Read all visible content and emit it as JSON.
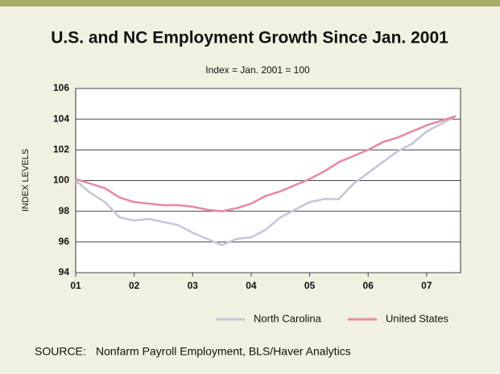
{
  "chart_data": {
    "type": "line",
    "title": "U.S. and NC Employment Growth Since Jan. 2001",
    "subtitle": "Index = Jan. 2001 = 100",
    "y_label": "INDEX LEVELS",
    "x": [
      2001,
      2001.25,
      2001.5,
      2001.75,
      2002,
      2002.25,
      2002.5,
      2002.75,
      2003,
      2003.25,
      2003.5,
      2003.75,
      2004,
      2004.25,
      2004.5,
      2004.75,
      2005,
      2005.25,
      2005.5,
      2005.75,
      2006,
      2006.25,
      2006.5,
      2006.75,
      2007,
      2007.25,
      2007.5
    ],
    "series": [
      {
        "name": "North Carolina",
        "color": "#c6c6d8",
        "values": [
          100.0,
          99.2,
          98.6,
          97.6,
          97.4,
          97.5,
          97.3,
          97.1,
          96.6,
          96.2,
          95.8,
          96.2,
          96.3,
          96.8,
          97.6,
          98.1,
          98.6,
          98.8,
          98.8,
          99.8,
          100.5,
          101.2,
          101.9,
          102.4,
          103.2,
          103.7,
          104.2
        ]
      },
      {
        "name": "United States",
        "color": "#e98aa2",
        "values": [
          100.1,
          99.8,
          99.5,
          98.9,
          98.6,
          98.5,
          98.4,
          98.4,
          98.3,
          98.1,
          98.0,
          98.2,
          98.5,
          99.0,
          99.3,
          99.7,
          100.1,
          100.6,
          101.2,
          101.6,
          102.0,
          102.5,
          102.8,
          103.2,
          103.6,
          103.9,
          104.2
        ]
      }
    ],
    "xlim": [
      2001,
      2007.58
    ],
    "xticks": [
      {
        "value": 2001,
        "label": "01"
      },
      {
        "value": 2002,
        "label": "02"
      },
      {
        "value": 2003,
        "label": "03"
      },
      {
        "value": 2004,
        "label": "04"
      },
      {
        "value": 2005,
        "label": "05"
      },
      {
        "value": 2006,
        "label": "06"
      },
      {
        "value": 2007,
        "label": "07"
      }
    ],
    "ylim": [
      94,
      106
    ],
    "yticks": [
      94,
      96,
      98,
      100,
      102,
      104,
      106
    ],
    "grid": true,
    "legend": "bottom",
    "source_label": "SOURCE:",
    "source": "Nonfarm Payroll Employment, BLS/Haver Analytics"
  }
}
